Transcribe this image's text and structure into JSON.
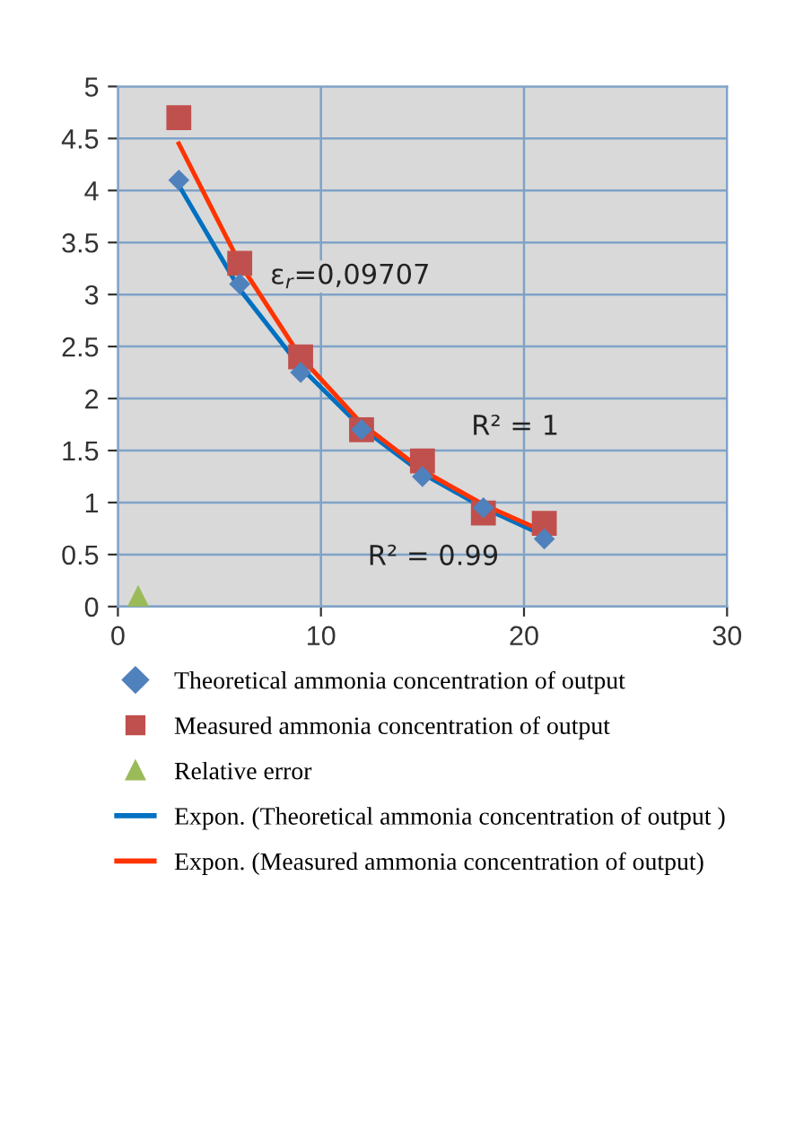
{
  "chart_data": {
    "type": "scatter",
    "xlim": [
      0,
      30
    ],
    "xticks": [
      0,
      10,
      20,
      30
    ],
    "ylim": [
      0,
      5
    ],
    "yticks": [
      0,
      0.5,
      1,
      1.5,
      2,
      2.5,
      3,
      3.5,
      4,
      4.5,
      5
    ],
    "grid": true,
    "legend": "bottom",
    "series": [
      {
        "name": "Theoretical ammonia concentration of output",
        "marker": "diamond",
        "color": "#4f81bd",
        "x": [
          3,
          6,
          9,
          12,
          15,
          18,
          21
        ],
        "values": [
          4.1,
          3.1,
          2.25,
          1.7,
          1.25,
          0.95,
          0.65
        ]
      },
      {
        "name": "Measured ammonia concentration of output",
        "marker": "square",
        "color": "#c0504d",
        "x": [
          3,
          6,
          9,
          12,
          15,
          18,
          21
        ],
        "values": [
          4.7,
          3.3,
          2.4,
          1.7,
          1.4,
          0.9,
          0.8
        ]
      },
      {
        "name": "Relative error",
        "marker": "triangle",
        "color": "#9bbb59",
        "x": [
          1
        ],
        "values": [
          0.1
        ]
      },
      {
        "name": "Expon. (Theoretical ammonia concentration of output )",
        "type": "line",
        "marker": "none",
        "color": "#0070c0",
        "x": [
          3,
          6,
          9,
          12,
          15,
          18,
          21
        ],
        "values": [
          4.05,
          3.05,
          2.3,
          1.72,
          1.28,
          0.95,
          0.68
        ]
      },
      {
        "name": "Expon. (Measured ammonia concentration of output)",
        "type": "line",
        "marker": "none",
        "color": "#ff3300",
        "x": [
          3,
          6,
          9,
          12,
          15,
          18,
          21
        ],
        "values": [
          4.45,
          3.3,
          2.4,
          1.76,
          1.31,
          0.98,
          0.72
        ]
      }
    ],
    "annotations": [
      "ε$_{r}$=0,09707",
      "R² = 1",
      "R² = 0.99"
    ]
  }
}
